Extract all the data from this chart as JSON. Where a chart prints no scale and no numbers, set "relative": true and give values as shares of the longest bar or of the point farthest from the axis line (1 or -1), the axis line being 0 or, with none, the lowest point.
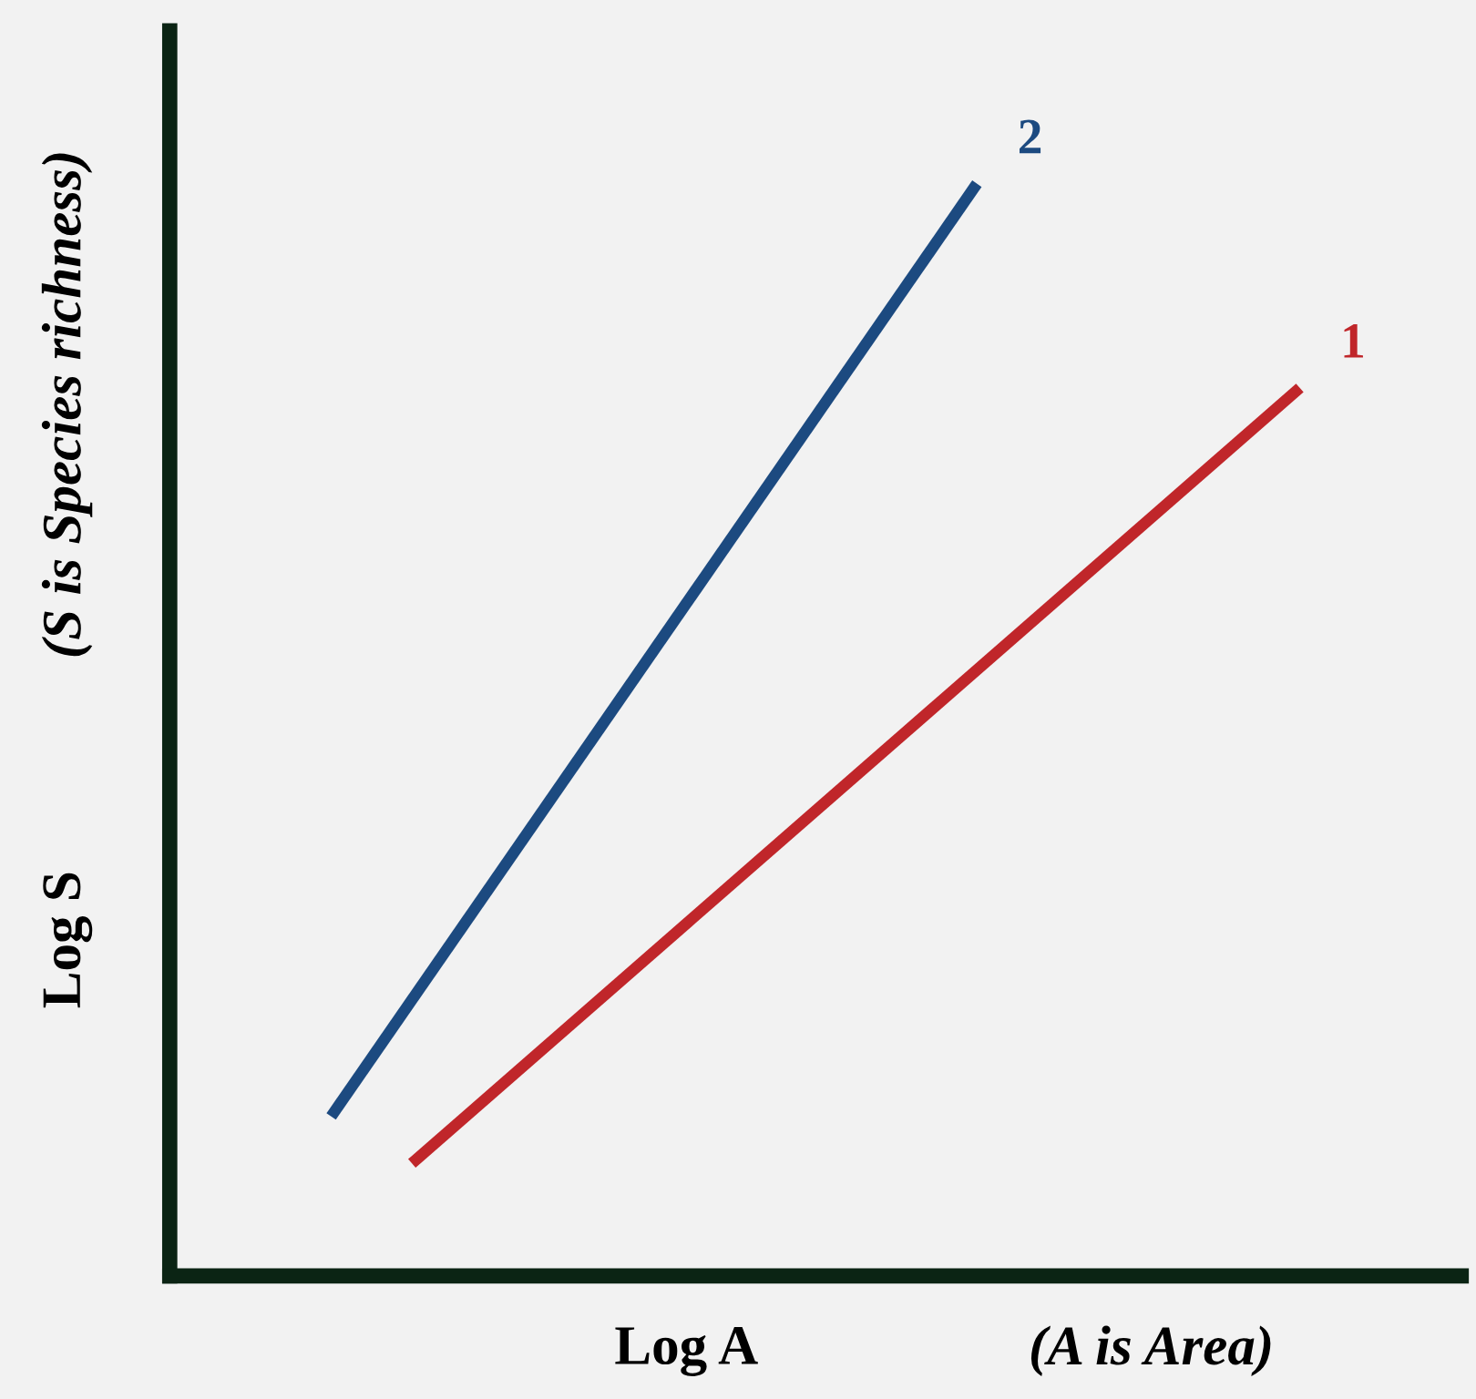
{
  "chart_data": {
    "type": "line",
    "relative": true,
    "xlabel": "Log A",
    "ylabel": "Log S",
    "annotations": [
      "(A is Area)",
      "(S is Species richness)"
    ],
    "categories": [
      null,
      null,
      null,
      null,
      null,
      null,
      null,
      null,
      null,
      null,
      null,
      null,
      null,
      null,
      null
    ],
    "series": [
      {
        "name": "2",
        "color": "#1c4a80",
        "values": [
          null,
          0.146,
          null,
          null,
          null,
          null,
          null,
          null,
          null,
          1,
          null,
          null,
          null,
          null,
          null
        ]
      },
      {
        "name": "1",
        "color": "#c0262a",
        "values": [
          null,
          null,
          0.103,
          null,
          null,
          null,
          null,
          null,
          null,
          null,
          null,
          null,
          null,
          0.813,
          null
        ]
      }
    ],
    "legend": false,
    "marker": "none",
    "line_style": "solid"
  }
}
